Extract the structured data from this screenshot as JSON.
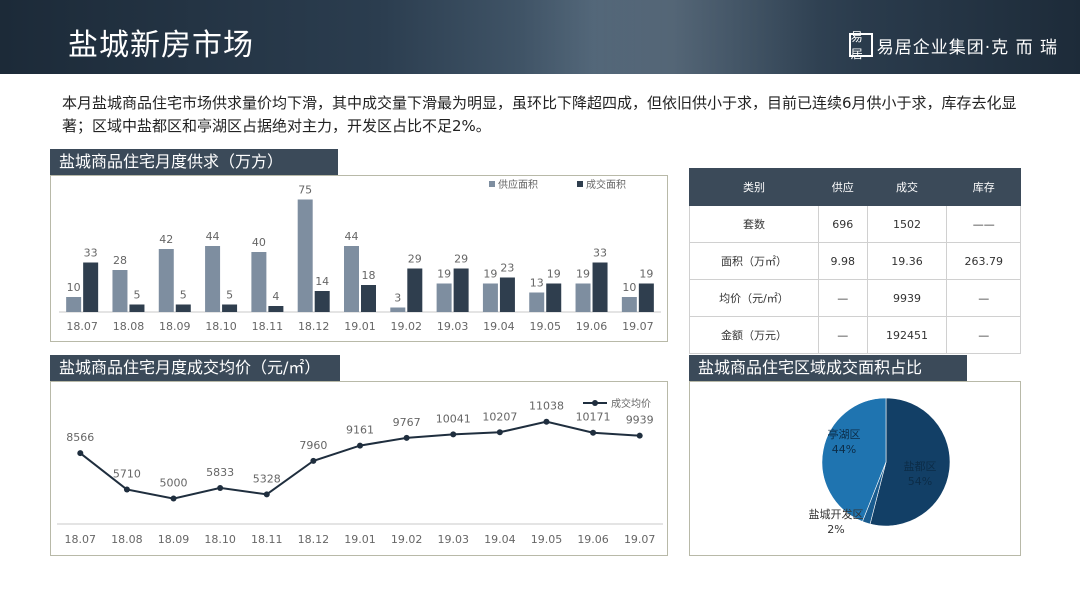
{
  "header": {
    "title": "盐城新房市场",
    "logo_mark": "易居",
    "logo_text": "易居企业集团·克 而 瑞"
  },
  "summary": "本月盐城商品住宅市场供求量价均下滑，其中成交量下滑最为明显，虽环比下降超四成，但依旧供小于求，目前已连续6月供小于求，库存去化显著；区域中盐都区和亭湖区占据绝对主力，开发区占比不足2%。",
  "supply_chart": {
    "label": "盐城商品住宅月度供求（万方）",
    "chart_data": {
      "type": "bar",
      "categories": [
        "18.07",
        "18.08",
        "18.09",
        "18.10",
        "18.11",
        "18.12",
        "19.01",
        "19.02",
        "19.03",
        "19.04",
        "19.05",
        "19.06",
        "19.07"
      ],
      "series": [
        {
          "name": "供应面积",
          "values": [
            10,
            28,
            42,
            44,
            40,
            75,
            44,
            3,
            19,
            19,
            13,
            19,
            10
          ],
          "color": "#7e8ea0"
        },
        {
          "name": "成交面积",
          "values": [
            33,
            5,
            5,
            5,
            4,
            14,
            18,
            29,
            29,
            23,
            19,
            33,
            19
          ],
          "color": "#2f3e4e"
        }
      ],
      "ylim": [
        0,
        80
      ],
      "legend": "top-right"
    }
  },
  "price_chart": {
    "label": "盐城商品住宅月度成交均价（元/㎡）",
    "chart_data": {
      "type": "line",
      "categories": [
        "18.07",
        "18.08",
        "18.09",
        "18.10",
        "18.11",
        "18.12",
        "19.01",
        "19.02",
        "19.03",
        "19.04",
        "19.05",
        "19.06",
        "19.07"
      ],
      "series": [
        {
          "name": "成交均价",
          "values": [
            8566,
            5710,
            5000,
            5833,
            5328,
            7960,
            9161,
            9767,
            10041,
            10207,
            11038,
            10171,
            9939
          ],
          "color": "#1f2e3e"
        }
      ],
      "ylim": [
        3000,
        14000
      ],
      "legend": "top-right"
    }
  },
  "stats_table": {
    "headers": [
      "类别",
      "供应",
      "成交",
      "库存"
    ],
    "rows": [
      [
        "套数",
        "696",
        "1502",
        "——"
      ],
      [
        "面积（万㎡）",
        "9.98",
        "19.36",
        "263.79"
      ],
      [
        "均价（元/㎡）",
        "—",
        "9939",
        "—"
      ],
      [
        "金额（万元）",
        "—",
        "192451",
        "—"
      ]
    ]
  },
  "pie_chart": {
    "label": "盐城商品住宅区域成交面积占比",
    "chart_data": {
      "type": "pie",
      "slices": [
        {
          "name": "盐都区",
          "value": 54,
          "label": "54%",
          "color": "#123f66"
        },
        {
          "name": "盐城开发区",
          "value": 2,
          "label": "2%",
          "color": "#1a5c8f"
        },
        {
          "name": "亭湖区",
          "value": 44,
          "label": "44%",
          "color": "#1f74b0"
        }
      ]
    }
  }
}
